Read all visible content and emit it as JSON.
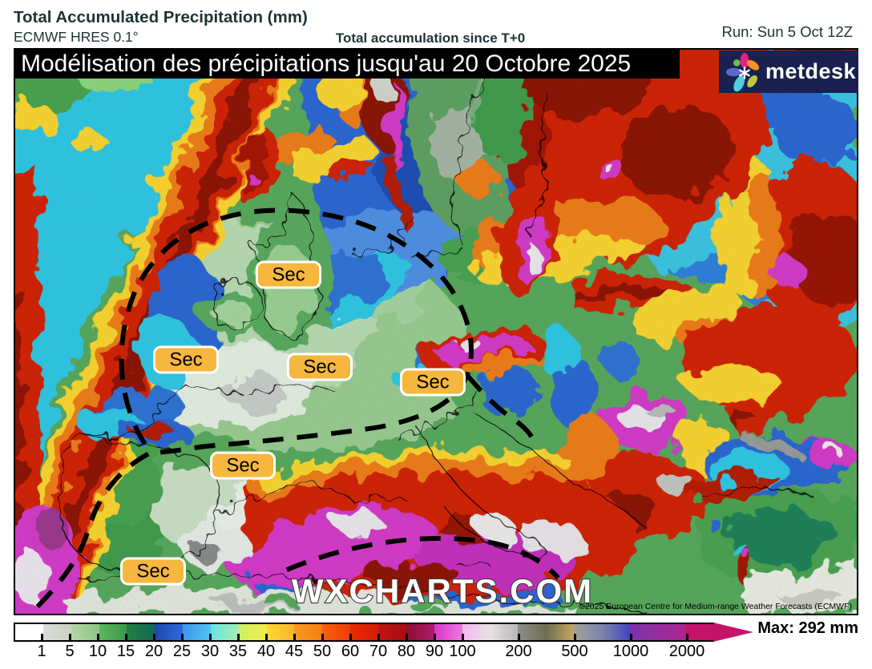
{
  "header": {
    "title": "Total Accumulated Precipitation (mm)",
    "model": "ECMWF HRES 0.1°",
    "accumulation_label": "Total accumulation since T+0",
    "run_label": "Run: Sun 5 Oct 12Z"
  },
  "banner": {
    "text": "Modélisation des précipitations jusqu'au 20 Octobre 2025"
  },
  "logo": {
    "brand": "metdesk",
    "background": "#1a2150"
  },
  "map": {
    "sec_label": "Sec",
    "watermark": "WXCHARTS.COM",
    "copyright": "©2025 European Centre for Medium-range Weather Forecasts (ECMWF)"
  },
  "colorbar": {
    "max_label": "Max: 292 mm",
    "labels": [
      {
        "text": "1",
        "u": 1
      },
      {
        "text": "5",
        "u": 2
      },
      {
        "text": "10",
        "u": 3
      },
      {
        "text": "15",
        "u": 4
      },
      {
        "text": "20",
        "u": 5
      },
      {
        "text": "25",
        "u": 6
      },
      {
        "text": "30",
        "u": 7
      },
      {
        "text": "35",
        "u": 8
      },
      {
        "text": "40",
        "u": 9
      },
      {
        "text": "45",
        "u": 10
      },
      {
        "text": "50",
        "u": 11
      },
      {
        "text": "60",
        "u": 12
      },
      {
        "text": "70",
        "u": 13
      },
      {
        "text": "80",
        "u": 14
      },
      {
        "text": "90",
        "u": 15
      },
      {
        "text": "100",
        "u": 16
      },
      {
        "text": "200",
        "u": 18
      },
      {
        "text": "500",
        "u": 20
      },
      {
        "text": "1000",
        "u": 22
      },
      {
        "text": "2000",
        "u": 24
      }
    ],
    "segments": [
      {
        "w": 1,
        "colors": [
          "#ffffff"
        ]
      },
      {
        "w": 1,
        "colors": [
          "#dbdbdb",
          "#c9d2bf"
        ]
      },
      {
        "w": 1,
        "colors": [
          "#b3d6a8",
          "#8cc583"
        ]
      },
      {
        "w": 1,
        "colors": [
          "#5eb55f",
          "#3a9b4c"
        ]
      },
      {
        "w": 1,
        "colors": [
          "#20803f",
          "#156957"
        ]
      },
      {
        "w": 1,
        "colors": [
          "#1c48ae",
          "#2d6cda"
        ]
      },
      {
        "w": 1,
        "colors": [
          "#3e96ef",
          "#50c4f2"
        ]
      },
      {
        "w": 1,
        "colors": [
          "#67e2e4",
          "#a6efac"
        ]
      },
      {
        "w": 1,
        "colors": [
          "#ccf167",
          "#f0ee46"
        ]
      },
      {
        "w": 1,
        "colors": [
          "#fcd835",
          "#fbb42a"
        ]
      },
      {
        "w": 1,
        "colors": [
          "#f99b1f",
          "#f87e15"
        ]
      },
      {
        "w": 1,
        "colors": [
          "#f65f0d",
          "#ee4004"
        ]
      },
      {
        "w": 1,
        "colors": [
          "#e72b00",
          "#d71d02"
        ]
      },
      {
        "w": 1,
        "colors": [
          "#c0130f",
          "#a80e17"
        ]
      },
      {
        "w": 1,
        "colors": [
          "#8d0f30",
          "#ae1a6f"
        ]
      },
      {
        "w": 1,
        "colors": [
          "#d835c5",
          "#ef79e2"
        ]
      },
      {
        "w": 2,
        "colors": [
          "#f5b8ee",
          "#e7dfe3",
          "#b8b8b8"
        ]
      },
      {
        "w": 2,
        "colors": [
          "#8e8e8e",
          "#6e6e52",
          "#c2a75b"
        ]
      },
      {
        "w": 2,
        "colors": [
          "#a2a299",
          "#7d85a7",
          "#4244c4"
        ]
      },
      {
        "w": 2,
        "colors": [
          "#7934ac",
          "#af248e"
        ]
      },
      {
        "w": 1,
        "colors": [
          "#c3146a"
        ]
      }
    ],
    "arrow_color": "#c3146a"
  },
  "colors": {
    "sec_fill": "#f5b73e",
    "header_text": "#1e3338",
    "banner_bg": "#000000"
  }
}
